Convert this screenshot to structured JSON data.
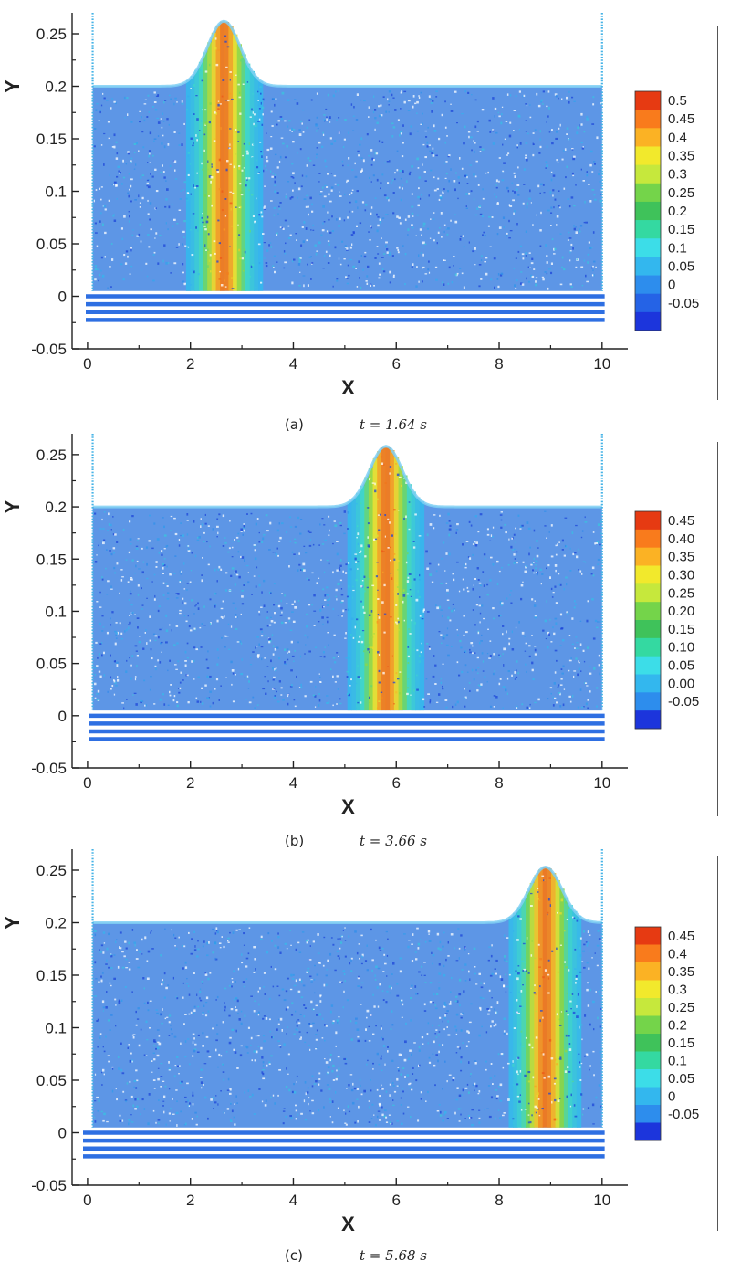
{
  "figures": [
    {
      "label": "(a)",
      "time_caption": "t = 1.64 s",
      "chart_data": {
        "type": "heatmap",
        "title": "",
        "xlabel": "X",
        "ylabel": "Y",
        "xlim": [
          -0.3,
          10.5
        ],
        "ylim": [
          -0.05,
          0.27
        ],
        "x_ticks": [
          "0",
          "2",
          "4",
          "6",
          "8",
          "10"
        ],
        "y_ticks": [
          "-0.05",
          "0",
          "0.05",
          "0.1",
          "0.15",
          "0.2",
          "0.25"
        ],
        "free_surface": {
          "still_level": 0.2,
          "crest_x": 2.65,
          "crest_height": 0.262
        },
        "colorbar": {
          "labels": [
            "0.5",
            "0.45",
            "0.4",
            "0.35",
            "0.3",
            "0.25",
            "0.2",
            "0.15",
            "0.1",
            "0.05",
            "0",
            "-0.05"
          ],
          "colors": [
            "#e63a12",
            "#f97b1c",
            "#fbb224",
            "#f2e92c",
            "#c6e83c",
            "#74d44a",
            "#3fc25a",
            "#34d9a1",
            "#3cdde8",
            "#33b7ee",
            "#2d8ded",
            "#2563e6",
            "#1c35dc"
          ]
        },
        "grid": false
      }
    },
    {
      "label": "(b)",
      "time_caption": "t = 3.66 s",
      "chart_data": {
        "type": "heatmap",
        "title": "",
        "xlabel": "X",
        "ylabel": "Y",
        "xlim": [
          -0.3,
          10.5
        ],
        "ylim": [
          -0.05,
          0.27
        ],
        "x_ticks": [
          "0",
          "2",
          "4",
          "6",
          "8",
          "10"
        ],
        "y_ticks": [
          "-0.05",
          "0",
          "0.05",
          "0.1",
          "0.15",
          "0.2",
          "0.25"
        ],
        "free_surface": {
          "still_level": 0.2,
          "crest_x": 5.8,
          "crest_height": 0.258
        },
        "colorbar": {
          "labels": [
            "0.45",
            "0.40",
            "0.35",
            "0.30",
            "0.25",
            "0.20",
            "0.15",
            "0.10",
            "0.05",
            "0.00",
            "-0.05"
          ],
          "colors": [
            "#e63a12",
            "#f97b1c",
            "#fbb224",
            "#f2e92c",
            "#c6e83c",
            "#74d44a",
            "#3fc25a",
            "#34d9a1",
            "#3cdde8",
            "#33b7ee",
            "#2d8ded",
            "#1c35dc"
          ]
        },
        "grid": false
      }
    },
    {
      "label": "(c)",
      "time_caption": "t = 5.68 s",
      "chart_data": {
        "type": "heatmap",
        "title": "",
        "xlabel": "X",
        "ylabel": "Y",
        "xlim": [
          -0.3,
          10.5
        ],
        "ylim": [
          -0.05,
          0.27
        ],
        "x_ticks": [
          "0",
          "2",
          "4",
          "6",
          "8",
          "10"
        ],
        "y_ticks": [
          "-0.05",
          "0",
          "0.05",
          "0.1",
          "0.15",
          "0.2",
          "0.25"
        ],
        "free_surface": {
          "still_level": 0.2,
          "crest_x": 8.9,
          "crest_height": 0.253
        },
        "colorbar": {
          "labels": [
            "0.45",
            "0.4",
            "0.35",
            "0.3",
            "0.25",
            "0.2",
            "0.15",
            "0.1",
            "0.05",
            "0",
            "-0.05"
          ],
          "colors": [
            "#e63a12",
            "#f97b1c",
            "#fbb224",
            "#f2e92c",
            "#c6e83c",
            "#74d44a",
            "#3fc25a",
            "#34d9a1",
            "#3cdde8",
            "#33b7ee",
            "#2d8ded",
            "#1c35dc"
          ]
        },
        "grid": false
      }
    }
  ]
}
